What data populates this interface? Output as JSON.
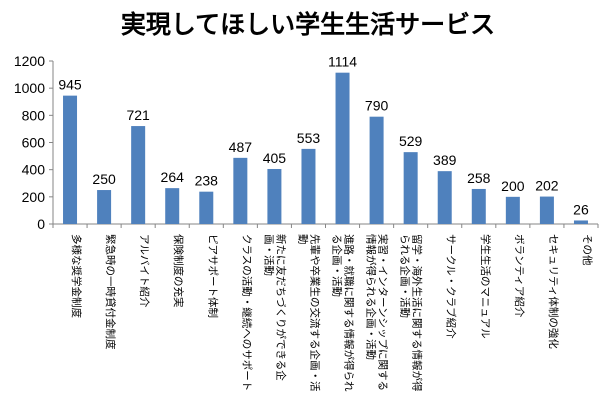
{
  "chart_data": {
    "type": "bar",
    "title": "実現してほしい学生生活サービス",
    "xlabel": "",
    "ylabel": "",
    "ylim": [
      0,
      1200
    ],
    "yticks": [
      0,
      200,
      400,
      600,
      800,
      1000,
      1200
    ],
    "grid": false,
    "legend": "none",
    "bar_color": "#4f81bd",
    "categories": [
      [
        "多様な奨学金制度"
      ],
      [
        "緊急時の一時貸付金制度"
      ],
      [
        "アルバイト紹介"
      ],
      [
        "保険制度の充実"
      ],
      [
        "ピアサポート体制"
      ],
      [
        "クラスの活動・継続へのサポート"
      ],
      [
        "新たに友だちづくりができる企",
        "画・活動"
      ],
      [
        "先輩や卒業生の交流する企画・活",
        "動"
      ],
      [
        "進路・就職に関する情報が得られ",
        "る企画・活動"
      ],
      [
        "実習・インターンシップに関する",
        "情報が得られる企画・活動"
      ],
      [
        "留学・海外生活に関する情報が得",
        "られる企画・活動"
      ],
      [
        "サークル・クラブ紹介"
      ],
      [
        "学生生活のマニュアル"
      ],
      [
        "ボランティア紹介"
      ],
      [
        "セキュリティ体制の強化"
      ],
      [
        "その他"
      ]
    ],
    "values": [
      945,
      250,
      721,
      264,
      238,
      487,
      405,
      553,
      1114,
      790,
      529,
      389,
      258,
      200,
      202,
      26
    ]
  }
}
